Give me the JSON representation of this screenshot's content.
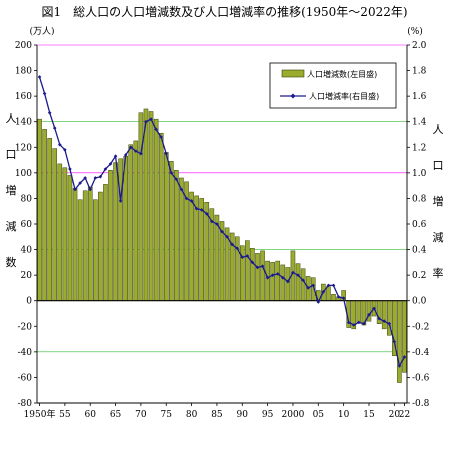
{
  "title": "図1　総人口の人口増減数及び人口増減率の推移(1950年～2022年)",
  "left_unit": "(万人)",
  "right_unit": "(%)",
  "left_axis_label": [
    "人",
    "口",
    "増",
    "減",
    "数"
  ],
  "right_axis_label": [
    "人",
    "口",
    "増",
    "減",
    "率"
  ],
  "colors": {
    "bar_fill": "#9aab2e",
    "bar_stroke": "#3a4210",
    "line": "#1a1a8c",
    "grid_main": "#ff00ff",
    "grid_minor": "#00aa00"
  },
  "chart_data": {
    "type": "bar",
    "x": [
      1950,
      1951,
      1952,
      1953,
      1954,
      1955,
      1956,
      1957,
      1958,
      1959,
      1960,
      1961,
      1962,
      1963,
      1964,
      1965,
      1966,
      1967,
      1968,
      1969,
      1970,
      1971,
      1972,
      1973,
      1974,
      1975,
      1976,
      1977,
      1978,
      1979,
      1980,
      1981,
      1982,
      1983,
      1984,
      1985,
      1986,
      1987,
      1988,
      1989,
      1990,
      1991,
      1992,
      1993,
      1994,
      1995,
      1996,
      1997,
      1998,
      1999,
      2000,
      2001,
      2002,
      2003,
      2004,
      2005,
      2006,
      2007,
      2008,
      2009,
      2010,
      2011,
      2012,
      2013,
      2014,
      2015,
      2016,
      2017,
      2018,
      2019,
      2020,
      2021,
      2022
    ],
    "x_tick_labels": [
      "1950年",
      "55",
      "60",
      "65",
      "70",
      "75",
      "80",
      "85",
      "90",
      "95",
      "2000",
      "05",
      "10",
      "15",
      "20",
      "22"
    ],
    "x_tick_years": [
      1950,
      1955,
      1960,
      1965,
      1970,
      1975,
      1980,
      1985,
      1990,
      1995,
      2000,
      2005,
      2010,
      2015,
      2020,
      2022
    ],
    "series": [
      {
        "name": "人口増減数(左目盛)",
        "axis": "left",
        "values": [
          142,
          134,
          127,
          119,
          107,
          104,
          98,
          88,
          79,
          86,
          89,
          79,
          85,
          91,
          102,
          108,
          111,
          113,
          122,
          125,
          147,
          150,
          148,
          142,
          131,
          116,
          109,
          102,
          96,
          93,
          85,
          82,
          80,
          77,
          72,
          67,
          62,
          57,
          53,
          50,
          43,
          47,
          41,
          37,
          39,
          31,
          30,
          31,
          28,
          26,
          39,
          29,
          25,
          19,
          18,
          8,
          13,
          11,
          5,
          3,
          8,
          -21,
          -22,
          -17,
          -19,
          -16,
          -12,
          -18,
          -22,
          -27,
          -43,
          -64,
          -56
        ]
      },
      {
        "name": "人口増減率(右目盛)",
        "axis": "right",
        "values": [
          1.75,
          1.62,
          1.47,
          1.35,
          1.22,
          1.18,
          1.03,
          0.87,
          0.92,
          0.96,
          0.87,
          0.96,
          0.97,
          1.03,
          1.07,
          1.13,
          0.78,
          1.14,
          1.2,
          1.17,
          1.15,
          1.4,
          1.42,
          1.34,
          1.28,
          1.15,
          1.0,
          0.95,
          0.87,
          0.8,
          0.78,
          0.72,
          0.71,
          0.68,
          0.62,
          0.6,
          0.54,
          0.5,
          0.44,
          0.41,
          0.34,
          0.35,
          0.3,
          0.26,
          0.27,
          0.18,
          0.2,
          0.21,
          0.18,
          0.15,
          0.22,
          0.2,
          0.16,
          0.1,
          0.12,
          -0.01,
          0.07,
          0.12,
          0.12,
          0.03,
          0.02,
          -0.17,
          -0.19,
          -0.17,
          -0.18,
          -0.11,
          -0.06,
          -0.14,
          -0.16,
          -0.18,
          -0.32,
          -0.51,
          -0.44
        ]
      }
    ],
    "left_axis": {
      "min": -80,
      "max": 200,
      "step": 20
    },
    "right_axis": {
      "min": -0.8,
      "max": 2.0,
      "step": 0.2
    },
    "legend_position": "top-right"
  }
}
